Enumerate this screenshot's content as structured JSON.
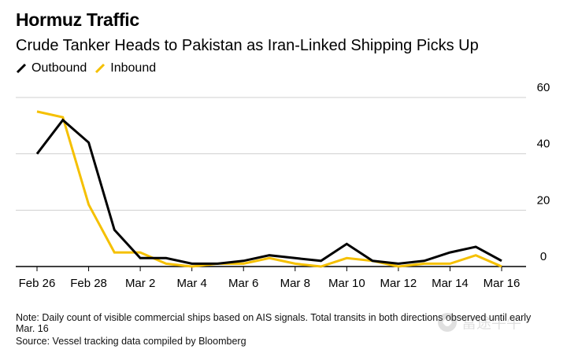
{
  "title": "Hormuz Traffic",
  "subtitle": "Crude Tanker Heads to Pakistan as Iran-Linked Shipping Picks Up",
  "legend": {
    "outbound": "Outbound",
    "inbound": "Inbound"
  },
  "note": "Note: Daily count of visible commercial ships based on AIS signals. Total transits in both directions observed until early Mar. 16",
  "source": "Source: Vessel tracking data compiled by Bloomberg",
  "watermark": "富途牛牛",
  "colors": {
    "outbound": "#000000",
    "inbound": "#f5c000",
    "grid": "#cfcfcf",
    "axis": "#000000"
  },
  "chart_data": {
    "type": "line",
    "x": [
      "Feb 26",
      "Feb 27",
      "Feb 28",
      "Mar 1",
      "Mar 2",
      "Mar 3",
      "Mar 4",
      "Mar 5",
      "Mar 6",
      "Mar 7",
      "Mar 8",
      "Mar 9",
      "Mar 10",
      "Mar 11",
      "Mar 12",
      "Mar 13",
      "Mar 14",
      "Mar 15",
      "Mar 16"
    ],
    "x_tick_labels": [
      "Feb 26",
      "Feb 28",
      "Mar 2",
      "Mar 4",
      "Mar 6",
      "Mar 8",
      "Mar 10",
      "Mar 12",
      "Mar 14",
      "Mar 16"
    ],
    "series": [
      {
        "name": "Outbound",
        "color": "#000000",
        "values": [
          40,
          52,
          44,
          13,
          3,
          3,
          1,
          1,
          2,
          4,
          3,
          2,
          8,
          2,
          1,
          2,
          5,
          7,
          2
        ]
      },
      {
        "name": "Inbound",
        "color": "#f5c000",
        "values": [
          55,
          53,
          22,
          5,
          5,
          1,
          0,
          1,
          1,
          3,
          1,
          0,
          3,
          2,
          0,
          1,
          1,
          4,
          0
        ]
      }
    ],
    "y_ticks": [
      0,
      20,
      40,
      60
    ],
    "ylim": [
      0,
      60
    ],
    "y_axis_side": "right",
    "grid": true,
    "legend_position": "top-left",
    "xlabel": "",
    "ylabel": ""
  }
}
